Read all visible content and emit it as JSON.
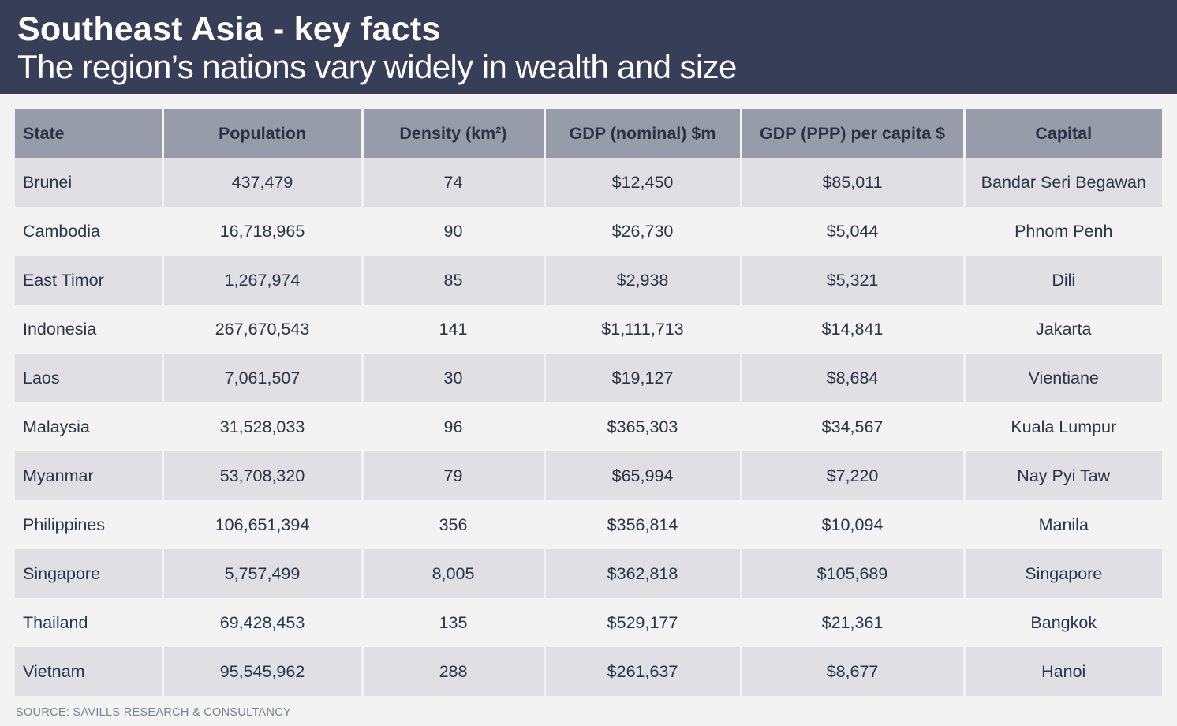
{
  "header": {
    "title": "Southeast Asia - key facts",
    "subtitle": "The region’s nations vary widely in wealth and size"
  },
  "table": {
    "columns": [
      "State",
      "Population",
      "Density (km²)",
      "GDP (nominal) $m",
      "GDP (PPP) per capita $",
      "Capital"
    ],
    "rows": [
      [
        "Brunei",
        "437,479",
        "74",
        "$12,450",
        "$85,011",
        "Bandar Seri Begawan"
      ],
      [
        "Cambodia",
        "16,718,965",
        "90",
        "$26,730",
        "$5,044",
        "Phnom Penh"
      ],
      [
        "East Timor",
        "1,267,974",
        "85",
        "$2,938",
        "$5,321",
        "Dili"
      ],
      [
        "Indonesia",
        "267,670,543",
        "141",
        "$1,111,713",
        "$14,841",
        "Jakarta"
      ],
      [
        "Laos",
        "7,061,507",
        "30",
        "$19,127",
        "$8,684",
        "Vientiane"
      ],
      [
        "Malaysia",
        "31,528,033",
        "96",
        "$365,303",
        "$34,567",
        "Kuala Lumpur"
      ],
      [
        "Myanmar",
        "53,708,320",
        "79",
        "$65,994",
        "$7,220",
        "Nay Pyi Taw"
      ],
      [
        "Philippines",
        "106,651,394",
        "356",
        "$356,814",
        "$10,094",
        "Manila"
      ],
      [
        "Singapore",
        "5,757,499",
        "8,005",
        "$362,818",
        "$105,689",
        "Singapore"
      ],
      [
        "Thailand",
        "69,428,453",
        "135",
        "$529,177",
        "$21,361",
        "Bangkok"
      ],
      [
        "Vietnam",
        "95,545,962",
        "288",
        "$261,637",
        "$8,677",
        "Hanoi"
      ]
    ]
  },
  "source": "SOURCE: SAVILLS RESEARCH & CONSULTANCY",
  "colors": {
    "banner": "#363f57",
    "header_row": "#989ca8",
    "row_shaded": "#dfdfe4",
    "row_plain": "#f3f3f4",
    "text": "#2d3446"
  }
}
